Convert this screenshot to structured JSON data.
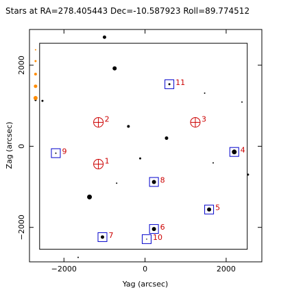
{
  "chart_data": {
    "type": "scatter",
    "title": "Stars at RA=278.405443 Dec=-10.587923 Roll=89.774512",
    "xlabel": "Yag (arcsec)",
    "ylabel": "Zag (arcsec)",
    "xlim": [
      -2850,
      2880
    ],
    "ylim": [
      -2850,
      2880
    ],
    "x_ticks": [
      -2000,
      0,
      2000
    ],
    "y_ticks": [
      -2000,
      0,
      2000
    ],
    "x_tick_labels": [
      "−2000",
      "0",
      "2000"
    ],
    "y_tick_labels": [
      "−2000",
      "0",
      "2000"
    ],
    "grid": false,
    "field_box": {
      "y_range": [
        -2600,
        2520
      ],
      "z_range": [
        -2540,
        2540
      ]
    },
    "stars": [
      {
        "y": -1000,
        "z": 2690,
        "size": 5
      },
      {
        "y": -750,
        "z": 1920,
        "size": 6
      },
      {
        "y": 600,
        "z": 1530,
        "size": 3
      },
      {
        "y": 1470,
        "z": 1310,
        "size": 2
      },
      {
        "y": -2700,
        "z": 1140,
        "size": 3
      },
      {
        "y": -2530,
        "z": 1120,
        "size": 3
      },
      {
        "y": 2390,
        "z": 1090,
        "size": 2
      },
      {
        "y": -410,
        "z": 490,
        "size": 4
      },
      {
        "y": 530,
        "z": 200,
        "size": 5
      },
      {
        "y": 2200,
        "z": -140,
        "size": 7
      },
      {
        "y": -120,
        "z": -300,
        "size": 3
      },
      {
        "y": 1680,
        "z": -410,
        "size": 2
      },
      {
        "y": 2540,
        "z": -700,
        "size": 3
      },
      {
        "y": 220,
        "z": -880,
        "size": 6
      },
      {
        "y": -700,
        "z": -910,
        "size": 2
      },
      {
        "y": -1370,
        "z": -1250,
        "size": 7
      },
      {
        "y": 1580,
        "z": -1560,
        "size": 6
      },
      {
        "y": 220,
        "z": -2040,
        "size": 6
      },
      {
        "y": -1050,
        "z": -2240,
        "size": 5
      },
      {
        "y": -1650,
        "z": -2740,
        "size": 2
      },
      {
        "y": -2200,
        "z": -170,
        "size": 2
      },
      {
        "y": 40,
        "z": -2290,
        "size": 1
      }
    ],
    "orange_stars": [
      {
        "y": -2700,
        "z": 2380,
        "size": 2
      },
      {
        "y": -2700,
        "z": 2100,
        "size": 3
      },
      {
        "y": -2700,
        "z": 1780,
        "size": 4
      },
      {
        "y": -2700,
        "z": 1480,
        "size": 5
      },
      {
        "y": -2700,
        "z": 1190,
        "size": 6
      }
    ],
    "guide_stars": [
      {
        "id": "1",
        "y": -1150,
        "z": -440
      },
      {
        "id": "2",
        "y": -1150,
        "z": 590
      },
      {
        "id": "3",
        "y": 1240,
        "z": 590
      }
    ],
    "acq_stars": [
      {
        "id": "4",
        "y": 2200,
        "z": -140
      },
      {
        "id": "5",
        "y": 1580,
        "z": -1560
      },
      {
        "id": "6",
        "y": 220,
        "z": -2040
      },
      {
        "id": "7",
        "y": -1050,
        "z": -2240
      },
      {
        "id": "8",
        "y": 220,
        "z": -880
      },
      {
        "id": "9",
        "y": -2200,
        "z": -170
      },
      {
        "id": "10",
        "y": 40,
        "z": -2290
      },
      {
        "id": "11",
        "y": 600,
        "z": 1530
      }
    ],
    "colors": {
      "star": "#000000",
      "orange_star": "#ff8c00",
      "guide": "#cc0000",
      "acq_box": "#0000cc",
      "label": "#cc0000"
    }
  }
}
